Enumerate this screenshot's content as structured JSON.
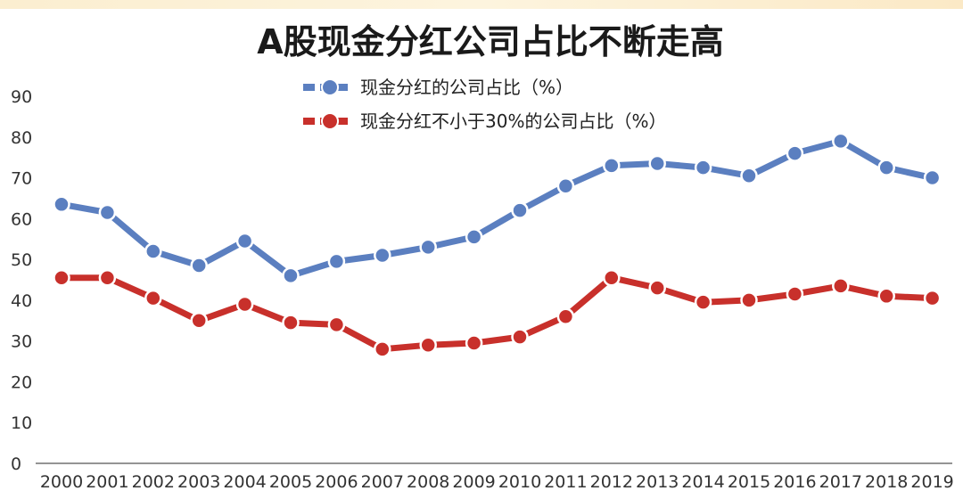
{
  "chart_data": {
    "type": "line",
    "title": "A股现金分红公司占比不断走高",
    "x": [
      "2000",
      "2001",
      "2002",
      "2003",
      "2004",
      "2005",
      "2006",
      "2007",
      "2008",
      "2009",
      "2010",
      "2011",
      "2012",
      "2013",
      "2014",
      "2015",
      "2016",
      "2017",
      "2018",
      "2019"
    ],
    "ylim": [
      0,
      90
    ],
    "yticks": [
      0,
      10,
      20,
      30,
      40,
      50,
      60,
      70,
      80,
      90
    ],
    "grid": false,
    "legend_position": "top-center",
    "series": [
      {
        "name": "现金分红的公司占比（%）",
        "color": "#5b7fc0",
        "values": [
          63.5,
          61.5,
          52,
          48.5,
          54.5,
          46,
          49.5,
          51,
          53,
          55.5,
          62,
          68,
          73,
          73.5,
          72.5,
          70.5,
          76,
          79,
          72.5,
          70
        ]
      },
      {
        "name": "现金分红不小于30%的公司占比（%）",
        "color": "#c8302b",
        "values": [
          45.5,
          45.5,
          40.5,
          35,
          39,
          34.5,
          34,
          28,
          29,
          29.5,
          31,
          36,
          45.5,
          43,
          39.5,
          40,
          41.5,
          43.5,
          41,
          40.5
        ]
      }
    ]
  }
}
